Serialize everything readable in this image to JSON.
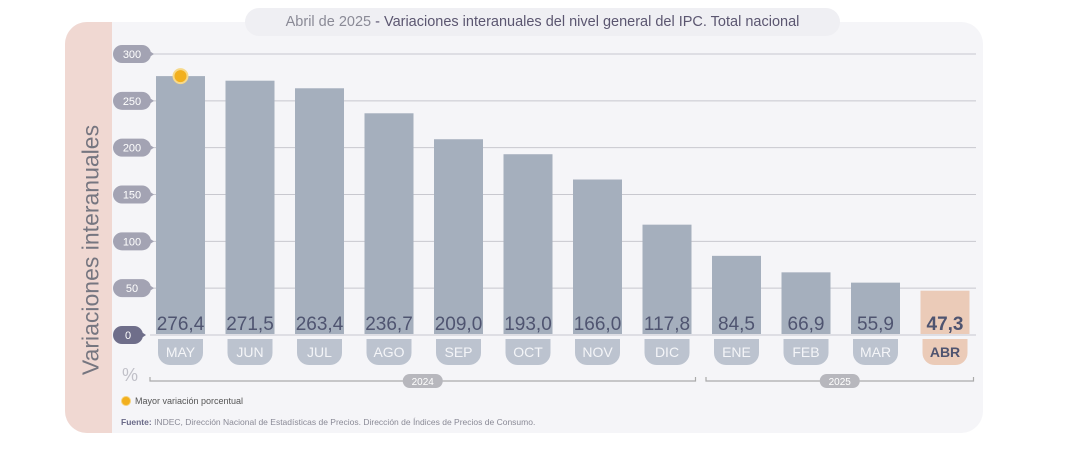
{
  "title": {
    "prefix": "Abril de 2025",
    "sep": " - ",
    "main": "Variaciones interanuales del nivel general del IPC. Total nacional"
  },
  "unit_label": "%",
  "legend": {
    "label": "Mayor variación porcentual"
  },
  "source": {
    "label": "Fuente:",
    "text": " INDEC, Dirección Nacional de Estadísticas de Precios. Dirección de Índices de Precios de Consumo."
  },
  "colors": {
    "bar": "#a5afbd",
    "highlight": "#ebcbb8",
    "marker": "#f2b01e"
  },
  "chart_data": {
    "type": "bar",
    "ylabel": "Variaciones interanuales",
    "xlabel": "",
    "ylim": [
      0,
      300
    ],
    "yticks": [
      0,
      50,
      100,
      150,
      200,
      250,
      300
    ],
    "grid": true,
    "categories": [
      "MAY",
      "JUN",
      "JUL",
      "AGO",
      "SEP",
      "OCT",
      "NOV",
      "DIC",
      "ENE",
      "FEB",
      "MAR",
      "ABR"
    ],
    "values": [
      276.4,
      271.5,
      263.4,
      236.7,
      209.0,
      193.0,
      166.0,
      117.8,
      84.5,
      66.9,
      55.9,
      47.3
    ],
    "labels": [
      "276,4",
      "271,5",
      "263,4",
      "236,7",
      "209,0",
      "193,0",
      "166,0",
      "117,8",
      "84,5",
      "66,9",
      "55,9",
      "47,3"
    ],
    "highlight_index": 11,
    "max_marker_index": 0,
    "year_groups": [
      {
        "label": "2024",
        "from": 0,
        "to": 7
      },
      {
        "label": "2025",
        "from": 8,
        "to": 11
      }
    ]
  }
}
